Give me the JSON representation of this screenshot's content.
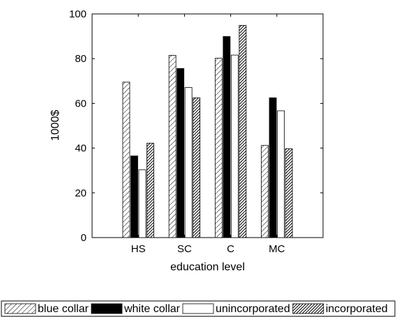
{
  "chart_data": {
    "type": "bar",
    "title": "",
    "xlabel": "education level",
    "ylabel": "1000$",
    "categories": [
      "HS",
      "SC",
      "C",
      "MC"
    ],
    "ylim": [
      0,
      100
    ],
    "yticks": [
      0,
      20,
      40,
      60,
      80,
      100
    ],
    "grid": false,
    "legend_position": "bottom",
    "series": [
      {
        "name": "blue collar",
        "values": [
          69.5,
          81.5,
          80.2,
          41.2
        ],
        "fill": "hatch-light"
      },
      {
        "name": "white collar",
        "values": [
          36.5,
          75.6,
          89.9,
          62.5
        ],
        "fill": "solid-black"
      },
      {
        "name": "unincorporated",
        "values": [
          30.3,
          67.1,
          81.6,
          56.7
        ],
        "fill": "white"
      },
      {
        "name": "incorporated",
        "values": [
          42.2,
          62.5,
          94.9,
          39.7
        ],
        "fill": "hatch-dense"
      }
    ],
    "colors": {
      "bar_edge": "#000000",
      "background": "#ffffff"
    }
  }
}
